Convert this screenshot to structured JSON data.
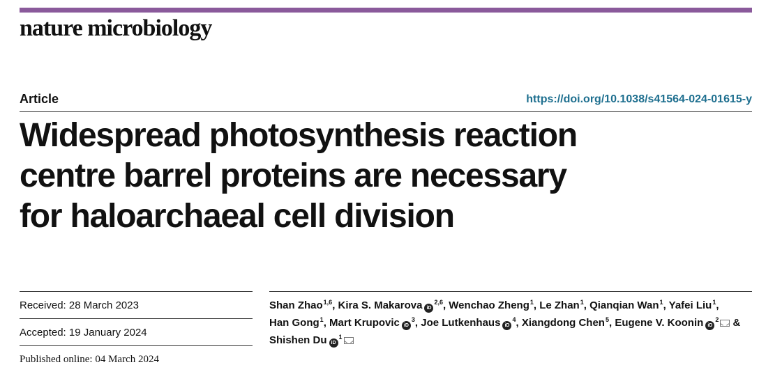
{
  "journal": "nature microbiology",
  "article_type": "Article",
  "doi": "https://doi.org/10.1038/s41564-024-01615-y",
  "title_lines": [
    "Widespread photosynthesis reaction",
    "centre barrel proteins are necessary",
    "for haloarchaeal cell division"
  ],
  "dates": {
    "received": "Received: 28 March 2023",
    "accepted": "Accepted: 19 January 2024",
    "published": "Published online: 04 March 2024"
  },
  "orcid_glyph": "iD",
  "authors": [
    {
      "name": "Shan Zhao",
      "aff": "1,6",
      "orcid": false,
      "mail": false,
      "sep": ", "
    },
    {
      "name": "Kira S. Makarova",
      "aff": "2,6",
      "orcid": true,
      "mail": false,
      "sep": ", "
    },
    {
      "name": "Wenchao Zheng",
      "aff": "1",
      "orcid": false,
      "mail": false,
      "sep": ", "
    },
    {
      "name": "Le Zhan",
      "aff": "1",
      "orcid": false,
      "mail": false,
      "sep": ", "
    },
    {
      "name": "Qianqian Wan",
      "aff": "1",
      "orcid": false,
      "mail": false,
      "sep": ", "
    },
    {
      "name": "Yafei Liu",
      "aff": "1",
      "orcid": false,
      "mail": false,
      "sep": ", "
    },
    {
      "name": "Han Gong",
      "aff": "1",
      "orcid": false,
      "mail": false,
      "sep": ", "
    },
    {
      "name": "Mart Krupovic",
      "aff": "3",
      "orcid": true,
      "mail": false,
      "sep": ", "
    },
    {
      "name": "Joe Lutkenhaus",
      "aff": "4",
      "orcid": true,
      "mail": false,
      "sep": ", "
    },
    {
      "name": "Xiangdong Chen",
      "aff": "5",
      "orcid": false,
      "mail": false,
      "sep": ", "
    },
    {
      "name": "Eugene V. Koonin",
      "aff": "2",
      "orcid": true,
      "mail": true,
      "sep": " & "
    },
    {
      "name": "Shishen Du",
      "aff": "1",
      "orcid": true,
      "mail": true,
      "sep": ""
    }
  ],
  "colors": {
    "top_rule": "#8a5a9b",
    "doi_link": "#1e6f8f"
  }
}
